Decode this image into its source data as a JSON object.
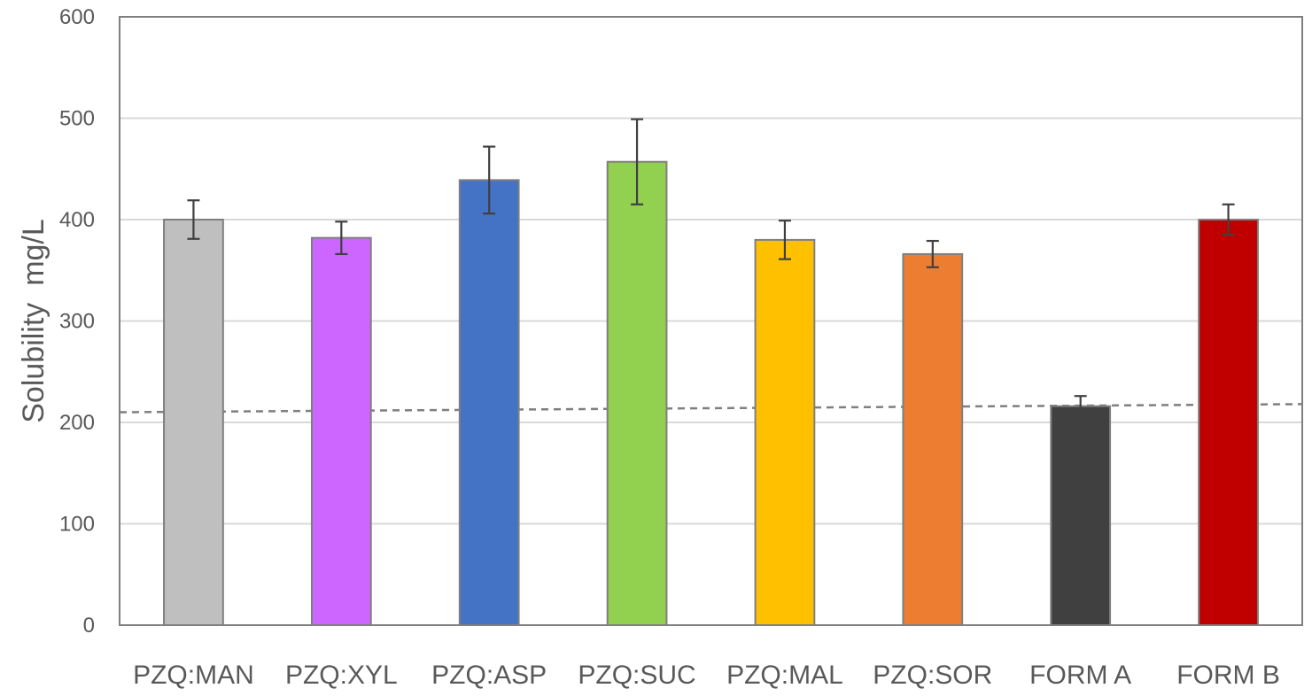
{
  "chart_data": {
    "type": "bar",
    "title": "",
    "xlabel": "",
    "ylabel": "Solubility  mg/L",
    "ylim": [
      0,
      600
    ],
    "yticks": [
      0,
      100,
      200,
      300,
      400,
      500,
      600
    ],
    "grid": true,
    "legend": "none",
    "categories": [
      "PZQ:MAN",
      "PZQ:XYL",
      "PZQ:ASP",
      "PZQ:SUC",
      "PZQ:MAL",
      "PZQ:SOR",
      "FORM A",
      "FORM B"
    ],
    "values": [
      400,
      382,
      439,
      457,
      380,
      366,
      216,
      400
    ],
    "errors": [
      19,
      16,
      33,
      42,
      19,
      13,
      10,
      15
    ],
    "colors": [
      "#bfbfbf",
      "#cc66ff",
      "#4472c4",
      "#92d050",
      "#ffc000",
      "#ed7d31",
      "#404040",
      "#c00000"
    ],
    "reference_line": {
      "y_start": 210,
      "y_end": 218,
      "style": "dashed"
    }
  }
}
